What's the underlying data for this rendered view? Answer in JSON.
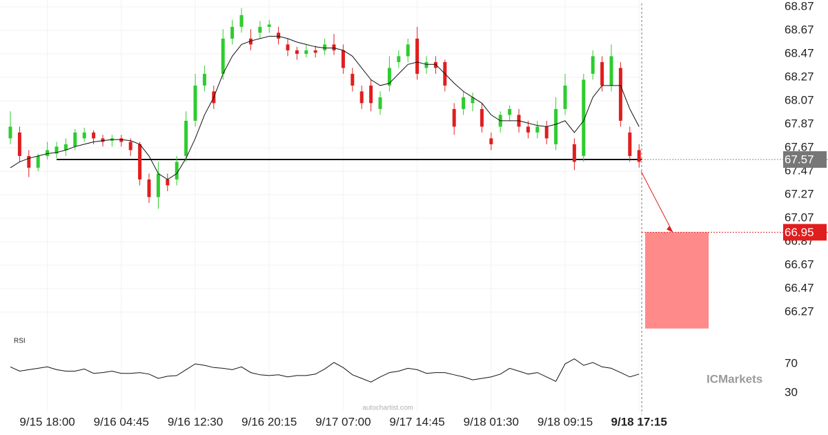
{
  "chart_data": {
    "type": "candlestick",
    "categories": [
      null,
      null,
      null,
      null,
      "9/15 18:00",
      null,
      null,
      null,
      null,
      null,
      null,
      null,
      "9/16 04:45",
      null,
      null,
      null,
      null,
      null,
      null,
      null,
      "9/16 12:30",
      null,
      null,
      null,
      null,
      null,
      null,
      null,
      "9/16 20:15",
      null,
      null,
      null,
      null,
      null,
      null,
      null,
      "9/17 07:00",
      null,
      null,
      null,
      null,
      null,
      null,
      null,
      "9/17 14:45",
      null,
      null,
      null,
      null,
      null,
      null,
      null,
      "9/18 01:30",
      null,
      null,
      null,
      null,
      null,
      null,
      null,
      "9/18 09:15",
      null,
      null,
      null,
      null,
      null,
      null,
      null,
      "9/18 17:15"
    ],
    "open": [
      67.75,
      67.8,
      67.6,
      67.5,
      67.6,
      67.62,
      67.65,
      67.68,
      67.75,
      67.8,
      67.75,
      67.73,
      67.75,
      67.72,
      67.7,
      67.4,
      67.25,
      67.4,
      67.4,
      67.6,
      67.9,
      68.2,
      68.15,
      68.3,
      68.6,
      68.7,
      68.6,
      68.65,
      68.7,
      68.65,
      68.55,
      68.5,
      68.47,
      68.5,
      68.5,
      68.55,
      68.5,
      68.3,
      68.15,
      68.2,
      68.0,
      68.2,
      68.4,
      68.45,
      68.6,
      68.35,
      68.4,
      68.4,
      68.0,
      68.0,
      68.05,
      68.0,
      67.75,
      67.85,
      67.95,
      67.95,
      67.85,
      67.8,
      67.85,
      67.7,
      68.0,
      67.7,
      67.6,
      68.3,
      68.4,
      68.2,
      68.35,
      67.8,
      67.65
    ],
    "high": [
      67.98,
      67.85,
      67.65,
      67.62,
      67.72,
      67.72,
      67.75,
      67.83,
      67.84,
      67.82,
      67.78,
      67.78,
      67.78,
      67.75,
      67.72,
      67.45,
      67.55,
      67.45,
      67.6,
      67.98,
      68.3,
      68.37,
      68.2,
      68.68,
      68.76,
      68.86,
      68.68,
      68.75,
      68.76,
      68.7,
      68.6,
      68.53,
      68.55,
      68.54,
      68.6,
      68.64,
      68.55,
      68.35,
      68.2,
      68.25,
      68.15,
      68.45,
      68.5,
      68.6,
      68.7,
      68.45,
      68.45,
      68.42,
      68.05,
      68.15,
      68.14,
      68.05,
      67.8,
      67.98,
      68.03,
      68.0,
      67.9,
      67.9,
      67.9,
      68.1,
      68.3,
      67.75,
      68.3,
      68.5,
      68.45,
      68.55,
      68.4,
      67.85,
      67.7
    ],
    "low": [
      67.7,
      67.55,
      67.42,
      67.47,
      67.57,
      67.58,
      67.6,
      67.65,
      67.72,
      67.7,
      67.68,
      67.68,
      67.68,
      67.6,
      67.35,
      67.2,
      67.15,
      67.3,
      67.35,
      67.55,
      67.85,
      68.15,
      68.0,
      68.25,
      68.55,
      68.65,
      68.5,
      68.6,
      68.65,
      68.55,
      68.45,
      68.42,
      68.44,
      68.44,
      68.46,
      68.46,
      68.3,
      68.15,
      68.0,
      67.98,
      67.95,
      68.15,
      68.35,
      68.4,
      68.25,
      68.3,
      68.3,
      68.15,
      67.78,
      67.95,
      67.98,
      67.8,
      67.65,
      67.8,
      67.9,
      67.8,
      67.75,
      67.75,
      67.7,
      67.65,
      67.95,
      67.48,
      67.55,
      68.25,
      68.15,
      68.15,
      67.85,
      67.55,
      67.5
    ],
    "close": [
      67.85,
      67.6,
      67.5,
      67.6,
      67.65,
      67.68,
      67.7,
      67.8,
      67.8,
      67.75,
      67.72,
      67.75,
      67.72,
      67.65,
      67.4,
      67.25,
      67.45,
      67.35,
      67.55,
      67.9,
      68.2,
      68.3,
      68.05,
      68.6,
      68.7,
      68.8,
      68.55,
      68.7,
      68.72,
      68.6,
      68.5,
      68.47,
      68.5,
      68.48,
      68.55,
      68.5,
      68.35,
      68.2,
      68.05,
      68.05,
      68.1,
      68.35,
      68.45,
      68.55,
      68.3,
      68.4,
      68.35,
      68.2,
      67.85,
      68.1,
      68.1,
      67.85,
      67.7,
      67.95,
      68.0,
      67.85,
      67.8,
      67.85,
      67.75,
      68.0,
      68.2,
      67.55,
      68.25,
      68.45,
      68.2,
      68.45,
      67.9,
      67.6,
      67.55
    ],
    "moving_average": [
      67.5,
      67.55,
      67.58,
      67.6,
      67.62,
      67.63,
      67.65,
      67.68,
      67.7,
      67.72,
      67.73,
      67.74,
      67.74,
      67.73,
      67.7,
      67.6,
      67.45,
      67.4,
      67.45,
      67.58,
      67.75,
      67.95,
      68.1,
      68.3,
      68.45,
      68.55,
      68.58,
      68.6,
      68.62,
      68.62,
      68.6,
      68.57,
      68.55,
      68.53,
      68.52,
      68.52,
      68.5,
      68.45,
      68.35,
      68.25,
      68.2,
      68.22,
      68.3,
      68.38,
      68.4,
      68.38,
      68.38,
      68.3,
      68.22,
      68.15,
      68.1,
      68.05,
      67.95,
      67.9,
      67.9,
      67.9,
      67.88,
      67.86,
      67.85,
      67.87,
      67.9,
      67.8,
      67.9,
      68.1,
      68.2,
      68.2,
      68.2,
      68.0,
      67.85
    ],
    "up_color": "#2ecc2e",
    "down_color": "#e01e1e",
    "ylim": [
      66.1,
      68.9
    ],
    "yticks": [
      68.87,
      68.67,
      68.47,
      68.27,
      68.07,
      67.87,
      67.67,
      67.47,
      67.27,
      67.07,
      66.87,
      66.67,
      66.47,
      66.27
    ],
    "support_level": 67.57,
    "current_price": 67.57,
    "target_price": 66.95,
    "target_zone_low": 66.13,
    "rsi": {
      "label": "RSI",
      "ylim": [
        15,
        91
      ],
      "yticks": [
        70,
        30
      ],
      "values": [
        66,
        60,
        62,
        64,
        66,
        62,
        60,
        60,
        63,
        57,
        58,
        60,
        57,
        57,
        58,
        56,
        50,
        53,
        54,
        62,
        70,
        68,
        65,
        64,
        62,
        66,
        58,
        55,
        54,
        55,
        52,
        54,
        54,
        56,
        63,
        72,
        65,
        55,
        50,
        45,
        52,
        58,
        60,
        64,
        62,
        57,
        58,
        58,
        55,
        52,
        48,
        50,
        52,
        56,
        64,
        60,
        56,
        58,
        52,
        46,
        70,
        77,
        68,
        72,
        66,
        64,
        58,
        52,
        56
      ]
    },
    "watermark": "autochartist.com",
    "logo": "ICMarkets"
  }
}
